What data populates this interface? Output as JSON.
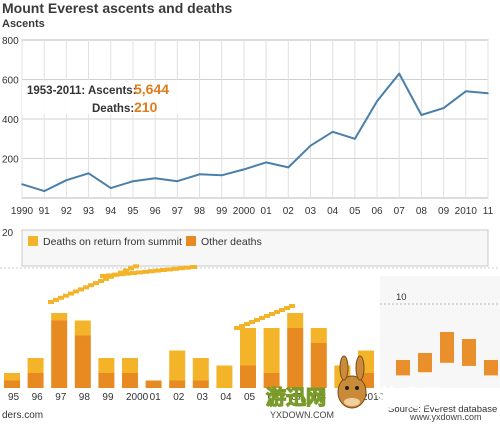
{
  "chart_data": [
    {
      "type": "line",
      "title": "Mount Everest ascents and deaths",
      "ylabel": "Ascents",
      "ylim": [
        0,
        800
      ],
      "yticks": [
        "800",
        "600",
        "400",
        "200"
      ],
      "xticks": [
        "1990",
        "91",
        "92",
        "93",
        "94",
        "95",
        "96",
        "97",
        "98",
        "99",
        "2000",
        "01",
        "02",
        "03",
        "04",
        "05",
        "06",
        "07",
        "08",
        "09",
        "2010",
        "11"
      ],
      "x": [
        1990,
        1991,
        1992,
        1993,
        1994,
        1995,
        1996,
        1997,
        1998,
        1999,
        2000,
        2001,
        2002,
        2003,
        2004,
        2005,
        2006,
        2007,
        2008,
        2009,
        2010,
        2011
      ],
      "series": [
        {
          "values": [
            70,
            35,
            90,
            125,
            50,
            85,
            100,
            85,
            120,
            115,
            145,
            180,
            155,
            265,
            335,
            300,
            490,
            630,
            420,
            455,
            540,
            530
          ]
        }
      ],
      "grid": true,
      "color": "#4a7faa",
      "annotation": {
        "ascents_label": "1953-2011: Ascents:",
        "ascents_value": "5,644",
        "deaths_label": "Deaths:",
        "deaths_value": "210"
      }
    },
    {
      "type": "bar",
      "ytop_label": "20",
      "legend": [
        {
          "name": "Deaths on return from summit",
          "color": "#f4b429"
        },
        {
          "name": "Other deaths",
          "color": "#e88a22"
        }
      ],
      "xticks": [
        "95",
        "96",
        "97",
        "98",
        "99",
        "2000",
        "01",
        "02",
        "03",
        "04",
        "05",
        "06",
        "07",
        "08",
        "09",
        "2010"
      ],
      "categories": [
        "1994",
        "1995",
        "1996",
        "1997",
        "1998",
        "1999",
        "2000",
        "2001",
        "2002",
        "2003",
        "2004",
        "2005",
        "2006",
        "2007",
        "2008",
        "2009",
        "2010",
        "2011"
      ],
      "series": [
        {
          "name": "Other deaths",
          "values": [
            1,
            2,
            9,
            7,
            2,
            2,
            1,
            1,
            1,
            0,
            3,
            2,
            8,
            6,
            0,
            2,
            0,
            0
          ]
        },
        {
          "name": "Deaths on return from summit",
          "values": [
            1,
            2,
            1,
            2,
            2,
            2,
            0,
            4,
            3,
            3,
            5,
            6,
            2,
            2,
            3,
            3,
            0,
            0
          ]
        }
      ],
      "overlay_text": "Sources: Elizabeth Hawley; AdventureStats.com",
      "overlay_number": "10",
      "source_fragment": "ders.com",
      "source_fragment_right": "Source: Everest database",
      "right_panel_values": [
        4,
        5,
        8,
        7,
        4
      ]
    }
  ],
  "watermark": {
    "text_a": "游迅网",
    "text_b": "游戏网",
    "domain_a": "YXDOWN.COM",
    "domain_b": "www.yxdown.com"
  }
}
